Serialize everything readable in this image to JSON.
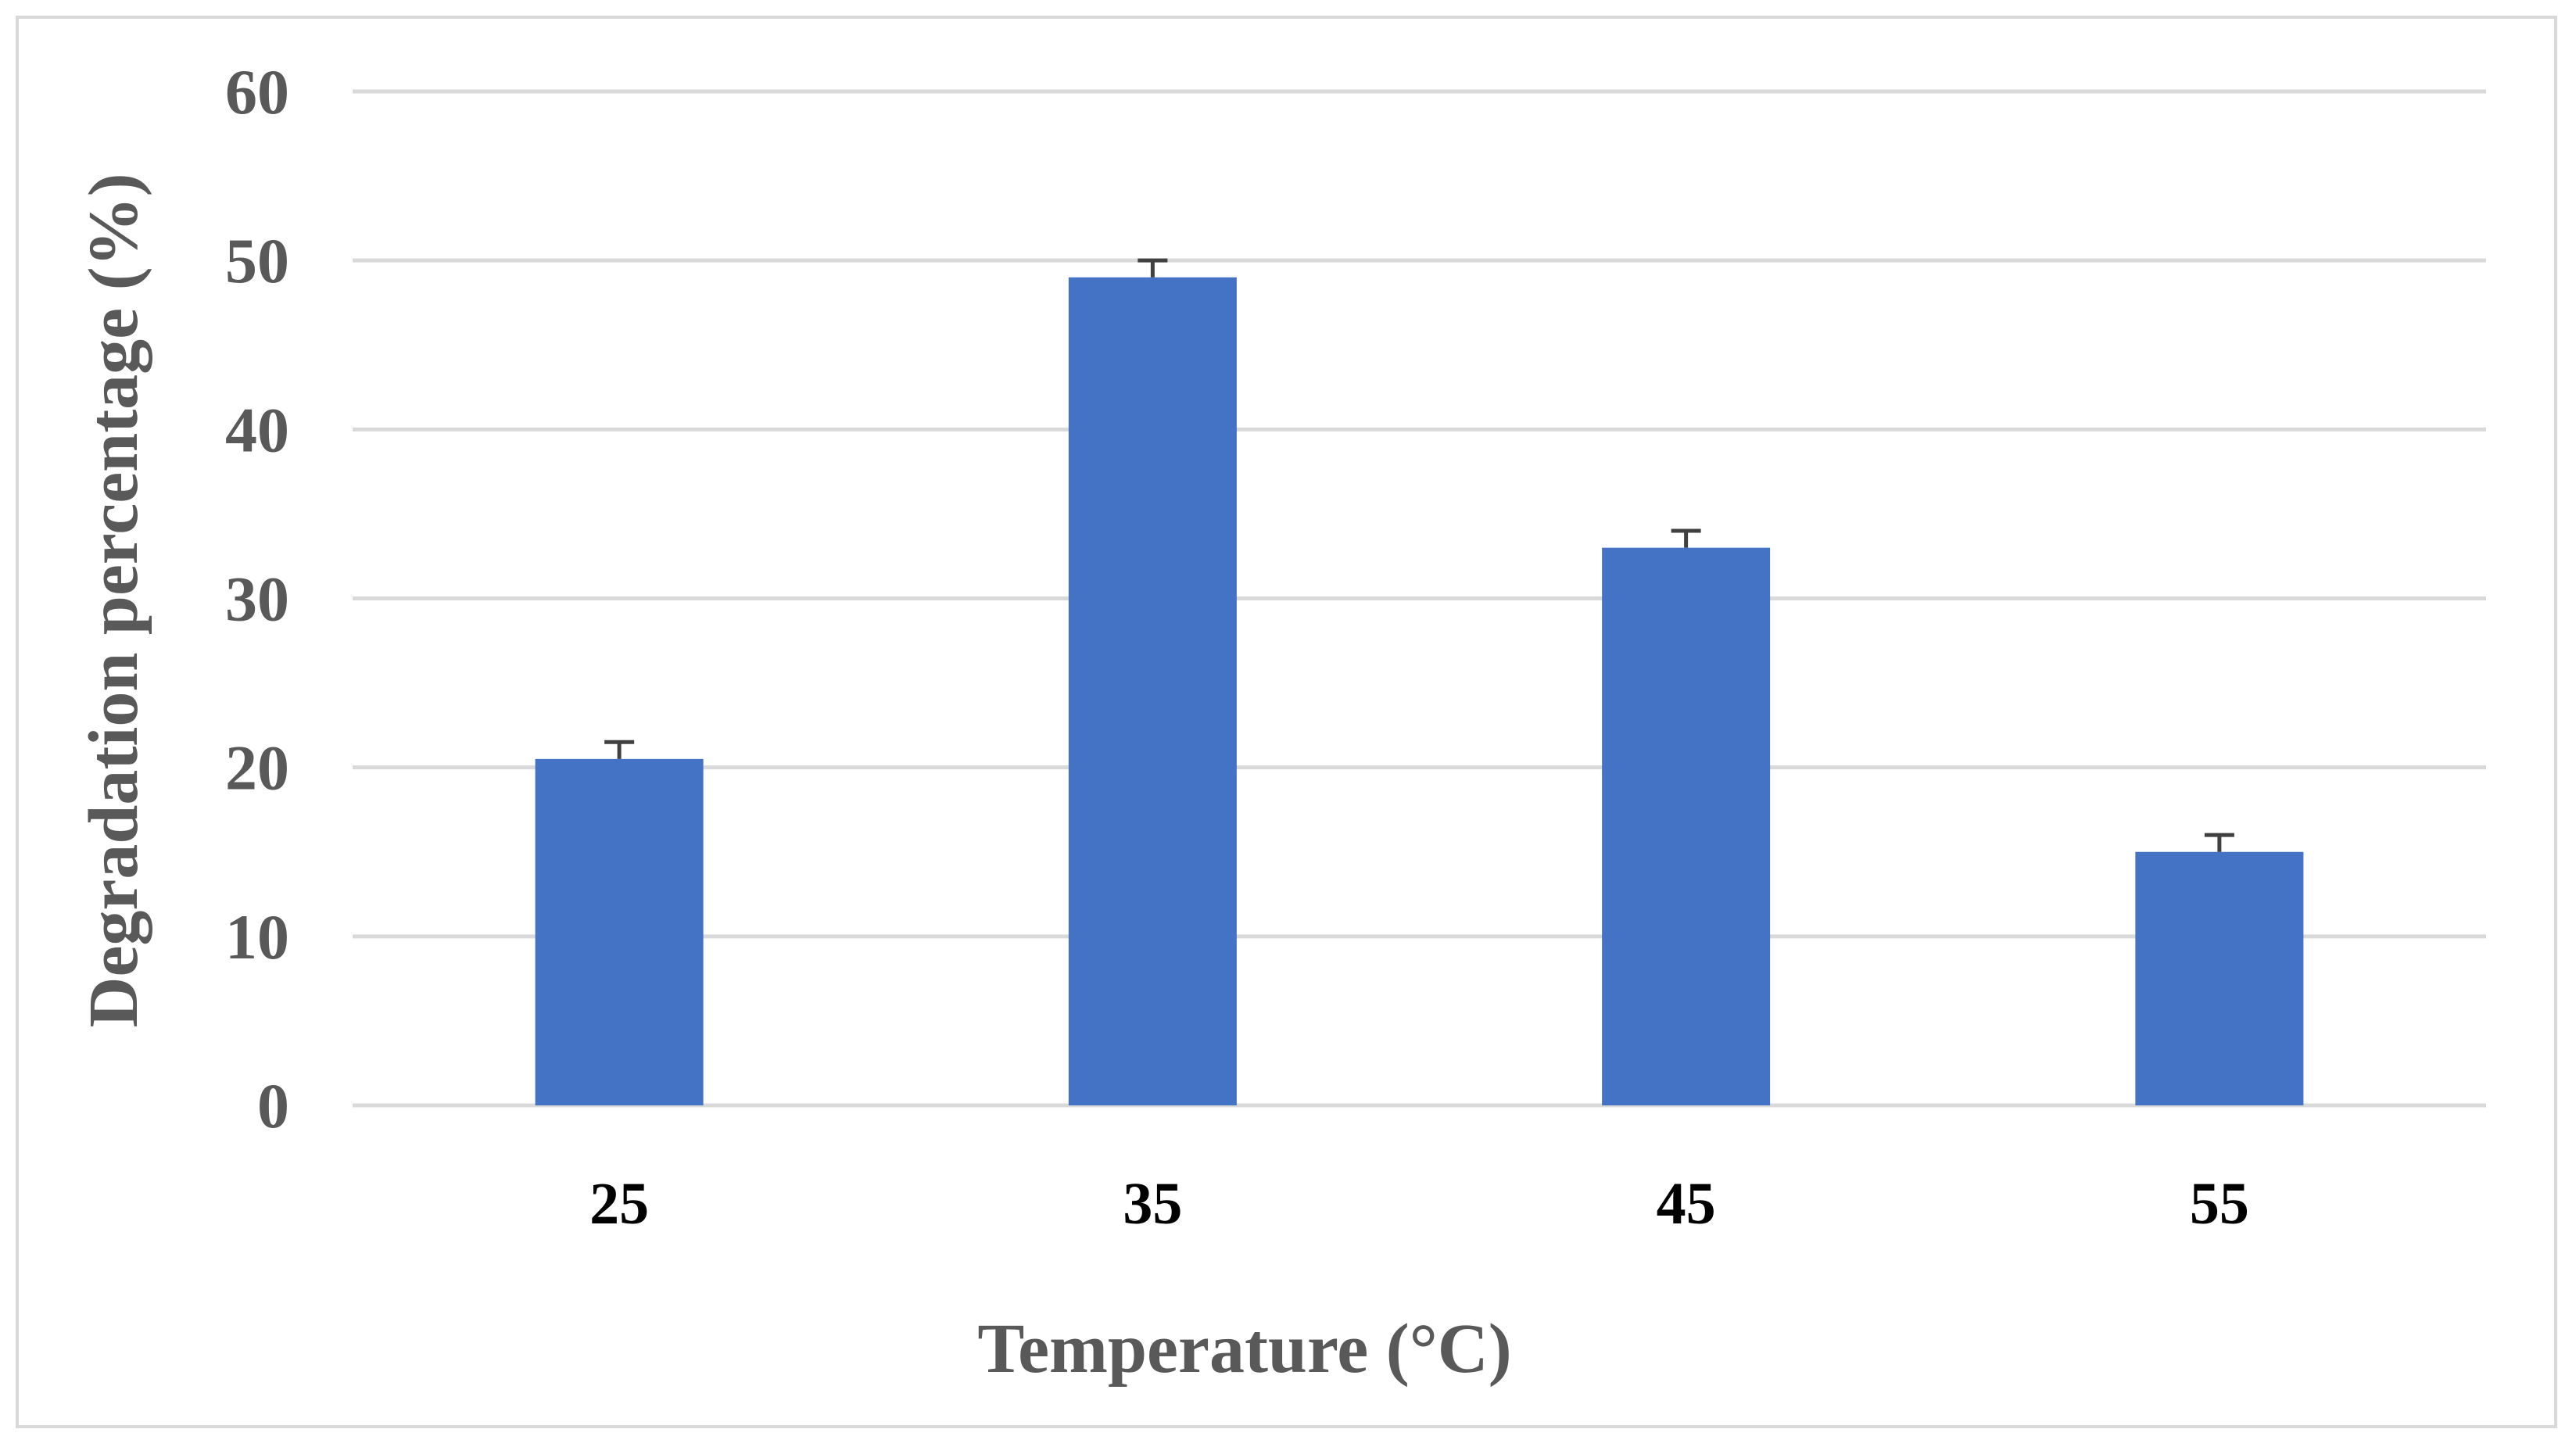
{
  "chart_data": {
    "type": "bar",
    "categories": [
      "25",
      "35",
      "45",
      "55"
    ],
    "values": [
      20.5,
      49,
      33,
      15
    ],
    "error": [
      1,
      1,
      1,
      1
    ],
    "title": "",
    "xlabel": "Temperature (°C)",
    "ylabel": "Degradation percentage (%)",
    "ylim": [
      0,
      60
    ],
    "yticks": [
      "0",
      "10",
      "20",
      "30",
      "40",
      "50",
      "60"
    ],
    "grid": true,
    "legend": "none",
    "bar_color": "#4472c4",
    "gridline_color": "#d9d9d9",
    "border_color": "#d9d9d9"
  }
}
